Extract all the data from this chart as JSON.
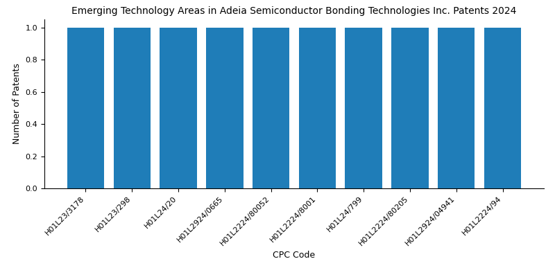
{
  "title": "Emerging Technology Areas in Adeia Semiconductor Bonding Technologies Inc. Patents 2024",
  "xlabel": "CPC Code",
  "ylabel": "Number of Patents",
  "categories": [
    "H01L23/3178",
    "H01L23/298",
    "H01L24/20",
    "H01L2924/0665",
    "H01L2224/80052",
    "H01L2224/8001",
    "H01L24/799",
    "H01L2224/80205",
    "H01L2924/04941",
    "H01L2224/94"
  ],
  "values": [
    1,
    1,
    1,
    1,
    1,
    1,
    1,
    1,
    1,
    1
  ],
  "bar_color": "#1f7db8",
  "ylim": [
    0,
    1.05
  ],
  "yticks": [
    0.0,
    0.2,
    0.4,
    0.6,
    0.8,
    1.0
  ],
  "title_fontsize": 10,
  "label_fontsize": 9,
  "tick_fontsize": 8,
  "bar_width": 0.8
}
